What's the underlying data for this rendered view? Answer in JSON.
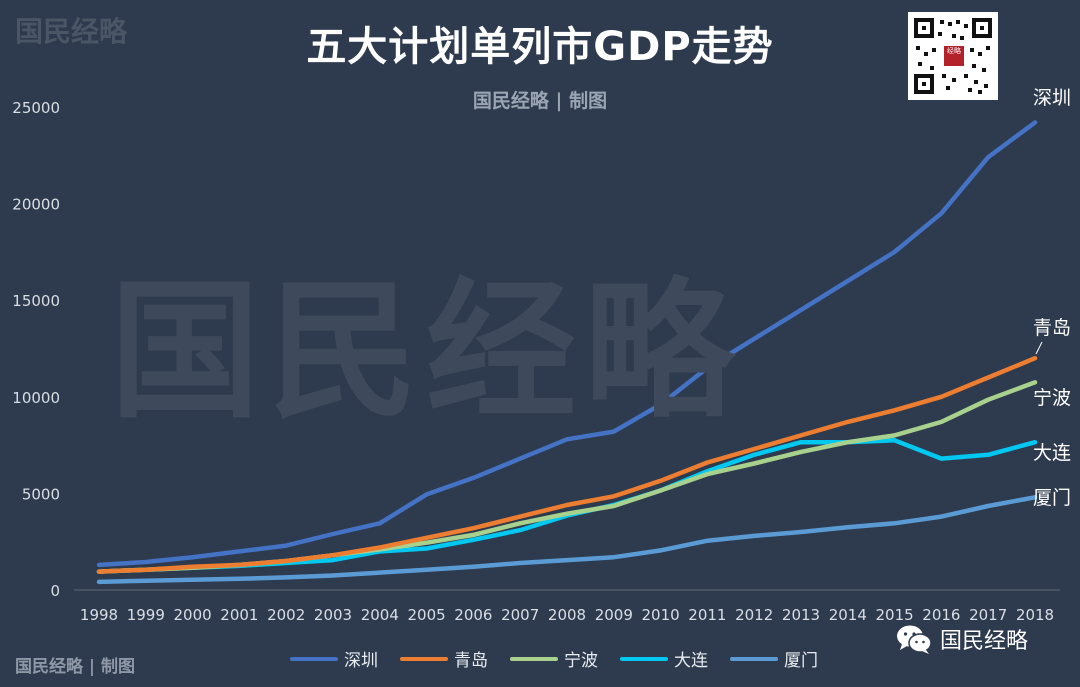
{
  "title": "五大计划单列市GDP走势",
  "subtitle": "国民经略 | 制图",
  "watermark_corner": "国民经略",
  "watermark_center": "国民经略",
  "footer_brand": "国民经略 | 制图",
  "wechat_label": "国民经略",
  "qr_seal_text": "经略",
  "colors": {
    "background": "#2e3a4d",
    "shenzhen": "#4472c4",
    "qingdao": "#ed7d31",
    "ningbo": "#a9d18e",
    "dalian": "#00c8f0",
    "xiamen": "#5b9bd5"
  },
  "chart_data": {
    "type": "line",
    "title": "五大计划单列市GDP走势",
    "xlabel": "",
    "ylabel": "",
    "ylim": [
      0,
      25000
    ],
    "yticks": [
      0,
      5000,
      10000,
      15000,
      20000,
      25000
    ],
    "grid": false,
    "legend_position": "bottom",
    "categories": [
      "1998",
      "1999",
      "2000",
      "2001",
      "2002",
      "2003",
      "2004",
      "2005",
      "2006",
      "2007",
      "2008",
      "2009",
      "2010",
      "2011",
      "2012",
      "2013",
      "2014",
      "2015",
      "2016",
      "2017",
      "2018"
    ],
    "series": [
      {
        "name": "深圳",
        "key": "shenzhen",
        "end_label": "深圳",
        "values": [
          1300,
          1450,
          1700,
          2000,
          2300,
          2900,
          3450,
          4950,
          5800,
          6800,
          7800,
          8200,
          9600,
          11500,
          13000,
          14500,
          16000,
          17500,
          19500,
          22400,
          24200
        ]
      },
      {
        "name": "青岛",
        "key": "qingdao",
        "end_label": "青岛",
        "values": [
          950,
          1050,
          1200,
          1300,
          1500,
          1800,
          2200,
          2700,
          3200,
          3800,
          4400,
          4850,
          5650,
          6600,
          7300,
          8000,
          8700,
          9300,
          10000,
          11000,
          12000
        ]
      },
      {
        "name": "宁波",
        "key": "ningbo",
        "end_label": "宁波",
        "values": [
          950,
          1050,
          1150,
          1300,
          1500,
          1800,
          2100,
          2450,
          2850,
          3450,
          3950,
          4350,
          5150,
          6000,
          6550,
          7150,
          7650,
          8000,
          8700,
          9850,
          10750
        ]
      },
      {
        "name": "大连",
        "key": "dalian",
        "end_label": "大连",
        "values": [
          950,
          1050,
          1150,
          1250,
          1400,
          1550,
          2000,
          2150,
          2600,
          3100,
          3850,
          4400,
          5150,
          6150,
          7000,
          7650,
          7650,
          7750,
          6800,
          7000,
          7650
        ]
      },
      {
        "name": "厦门",
        "key": "xiamen",
        "end_label": "厦门",
        "values": [
          420,
          480,
          530,
          580,
          650,
          750,
          900,
          1050,
          1200,
          1400,
          1550,
          1700,
          2050,
          2550,
          2800,
          3000,
          3250,
          3450,
          3800,
          4350,
          4800
        ]
      }
    ]
  }
}
